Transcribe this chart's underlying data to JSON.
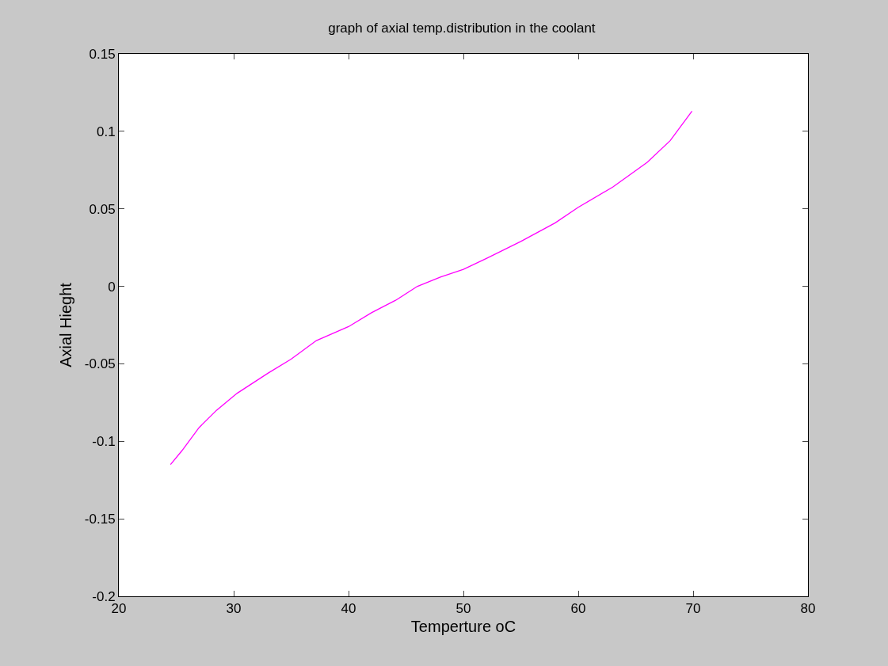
{
  "chart_data": {
    "type": "line",
    "title": "graph of axial temp.distribution in the coolant",
    "xlabel": "Temperture oC",
    "ylabel": "Axial Hieght",
    "x": [
      24.5,
      25.5,
      27,
      28.5,
      30.3,
      33,
      35,
      37.2,
      40,
      42,
      44.1,
      46,
      48,
      50,
      52,
      55,
      58,
      60,
      63,
      66,
      68,
      69.9
    ],
    "series": [
      {
        "color": "#ff00ff",
        "values": [
          -0.115,
          -0.106,
          -0.091,
          -0.08,
          -0.069,
          -0.056,
          -0.047,
          -0.035,
          -0.026,
          -0.017,
          -0.009,
          0,
          0.006,
          0.011,
          0.018,
          0.029,
          0.041,
          0.051,
          0.064,
          0.08,
          0.094,
          0.113
        ]
      }
    ],
    "xlim": [
      20,
      80
    ],
    "xticks": [
      20,
      30,
      40,
      50,
      60,
      70,
      80
    ],
    "ylim": [
      -0.2,
      0.15
    ],
    "yticks": [
      -0.2,
      -0.15,
      -0.1,
      -0.05,
      0,
      0.05,
      0.1,
      0.15
    ],
    "grid": false,
    "marker": "none",
    "line_style": "solid"
  }
}
